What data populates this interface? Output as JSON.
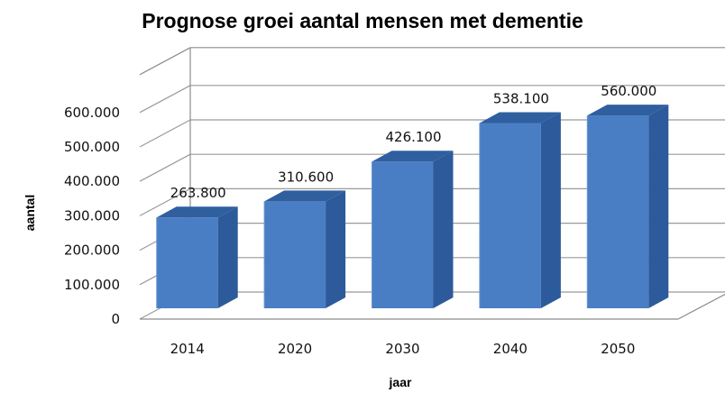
{
  "chart_data": {
    "type": "bar",
    "title": "Prognose groei aantal mensen met dementie",
    "xlabel": "jaar",
    "ylabel": "aantal",
    "categories": [
      "2014",
      "2020",
      "2030",
      "2040",
      "2050"
    ],
    "values": [
      263800,
      310600,
      426100,
      538100,
      560000
    ],
    "data_labels": [
      "263.800",
      "310.600",
      "426.100",
      "538.100",
      "560.000"
    ],
    "yticks": [
      0,
      100000,
      200000,
      300000,
      400000,
      500000,
      600000
    ],
    "ytick_labels": [
      "0",
      "100.000",
      "200.000",
      "300.000",
      "400.000",
      "500.000",
      "600.000"
    ],
    "ylim": [
      0,
      600000
    ],
    "grid": true,
    "legend": "none",
    "style": "3d-column",
    "colors": {
      "front": "#4a7ec4",
      "side": "#2d5a9a",
      "top": "#2f5f9f"
    }
  }
}
